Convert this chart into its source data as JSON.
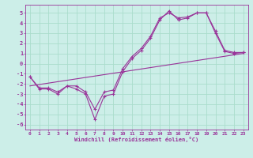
{
  "xlabel": "Windchill (Refroidissement éolien,°C)",
  "background_color": "#cceee8",
  "grid_color": "#aaddcc",
  "line_color": "#993399",
  "xlim": [
    -0.5,
    23.5
  ],
  "ylim": [
    -6.5,
    5.8
  ],
  "yticks": [
    -6,
    -5,
    -4,
    -3,
    -2,
    -1,
    0,
    1,
    2,
    3,
    4,
    5
  ],
  "xticks": [
    0,
    1,
    2,
    3,
    4,
    5,
    6,
    7,
    8,
    9,
    10,
    11,
    12,
    13,
    14,
    15,
    16,
    17,
    18,
    19,
    20,
    21,
    22,
    23
  ],
  "line1_x": [
    0,
    1,
    2,
    3,
    4,
    5,
    6,
    7,
    8,
    9,
    10,
    11,
    12,
    13,
    14,
    15,
    16,
    17,
    18,
    19,
    20,
    21,
    22,
    23
  ],
  "line1_y": [
    -1.3,
    -2.5,
    -2.5,
    -3.0,
    -2.2,
    -2.5,
    -3.0,
    -5.5,
    -3.2,
    -3.0,
    -0.8,
    0.5,
    1.3,
    2.5,
    4.3,
    5.2,
    4.3,
    4.5,
    5.0,
    5.0,
    3.0,
    1.2,
    1.0,
    1.1
  ],
  "line2_x": [
    0,
    1,
    2,
    3,
    4,
    5,
    6,
    7,
    8,
    9,
    10,
    11,
    12,
    13,
    14,
    15,
    16,
    17,
    18,
    19,
    20,
    21,
    22,
    23
  ],
  "line2_y": [
    -1.3,
    -2.4,
    -2.4,
    -2.8,
    -2.2,
    -2.2,
    -2.8,
    -4.5,
    -2.8,
    -2.6,
    -0.5,
    0.7,
    1.5,
    2.7,
    4.5,
    5.0,
    4.5,
    4.6,
    5.0,
    5.0,
    3.2,
    1.3,
    1.1,
    1.1
  ],
  "trend_x": [
    0,
    23
  ],
  "trend_y": [
    -2.2,
    1.0
  ]
}
